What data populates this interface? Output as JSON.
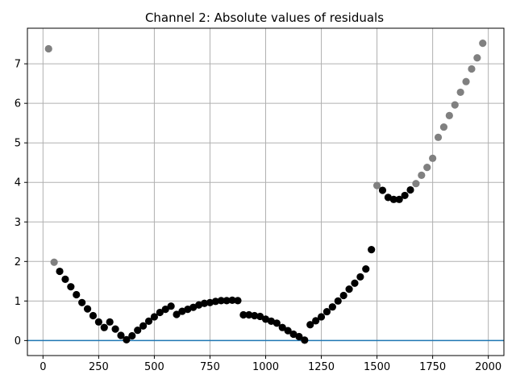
{
  "chart_data": {
    "type": "scatter",
    "title": "Channel 2: Absolute values of residuals",
    "xlabel": "",
    "ylabel": "",
    "xlim": [
      -70,
      2070
    ],
    "ylim": [
      -0.38,
      7.9
    ],
    "x_ticks": [
      0,
      250,
      500,
      750,
      1000,
      1250,
      1500,
      1750,
      2000
    ],
    "x_tick_labels": [
      "0",
      "250",
      "500",
      "750",
      "1000",
      "1250",
      "1500",
      "1750",
      "2000"
    ],
    "y_ticks": [
      0,
      1,
      2,
      3,
      4,
      5,
      6,
      7
    ],
    "y_tick_labels": [
      "0",
      "1",
      "2",
      "3",
      "4",
      "5",
      "6",
      "7"
    ],
    "grid": true,
    "colors": {
      "inlier": "#000000",
      "outlier": "#808080",
      "baseline": "#1f77b4",
      "grid": "#b0b0b0"
    },
    "reference_line": {
      "y": 0
    },
    "series": [
      {
        "category": "outlier",
        "color": "#808080",
        "points": [
          [
            25,
            7.38
          ],
          [
            50,
            1.98
          ],
          [
            1500,
            3.92
          ],
          [
            1675,
            3.97
          ],
          [
            1700,
            4.18
          ],
          [
            1725,
            4.38
          ],
          [
            1750,
            4.61
          ],
          [
            1775,
            5.14
          ],
          [
            1800,
            5.4
          ],
          [
            1825,
            5.69
          ],
          [
            1850,
            5.96
          ],
          [
            1875,
            6.28
          ],
          [
            1900,
            6.55
          ],
          [
            1925,
            6.87
          ],
          [
            1950,
            7.15
          ],
          [
            1975,
            7.52
          ]
        ]
      },
      {
        "category": "inlier",
        "color": "#000000",
        "points": [
          [
            75,
            1.75
          ],
          [
            100,
            1.55
          ],
          [
            125,
            1.36
          ],
          [
            150,
            1.16
          ],
          [
            175,
            0.96
          ],
          [
            200,
            0.8
          ],
          [
            225,
            0.63
          ],
          [
            250,
            0.47
          ],
          [
            275,
            0.33
          ],
          [
            300,
            0.47
          ],
          [
            325,
            0.29
          ],
          [
            350,
            0.13
          ],
          [
            375,
            0.02
          ],
          [
            400,
            0.12
          ],
          [
            425,
            0.26
          ],
          [
            450,
            0.37
          ],
          [
            475,
            0.49
          ],
          [
            500,
            0.6
          ],
          [
            525,
            0.71
          ],
          [
            550,
            0.79
          ],
          [
            575,
            0.87
          ],
          [
            600,
            0.66
          ],
          [
            625,
            0.74
          ],
          [
            650,
            0.79
          ],
          [
            675,
            0.84
          ],
          [
            700,
            0.9
          ],
          [
            725,
            0.94
          ],
          [
            750,
            0.96
          ],
          [
            775,
            0.99
          ],
          [
            800,
            1.01
          ],
          [
            825,
            1.01
          ],
          [
            850,
            1.02
          ],
          [
            875,
            1.01
          ],
          [
            900,
            0.65
          ],
          [
            925,
            0.65
          ],
          [
            950,
            0.63
          ],
          [
            975,
            0.61
          ],
          [
            1000,
            0.54
          ],
          [
            1025,
            0.49
          ],
          [
            1050,
            0.44
          ],
          [
            1075,
            0.33
          ],
          [
            1100,
            0.25
          ],
          [
            1125,
            0.16
          ],
          [
            1150,
            0.1
          ],
          [
            1175,
            0.01
          ],
          [
            1200,
            0.4
          ],
          [
            1225,
            0.5
          ],
          [
            1250,
            0.6
          ],
          [
            1275,
            0.73
          ],
          [
            1300,
            0.85
          ],
          [
            1325,
            1.0
          ],
          [
            1350,
            1.14
          ],
          [
            1375,
            1.3
          ],
          [
            1400,
            1.45
          ],
          [
            1425,
            1.61
          ],
          [
            1450,
            1.81
          ],
          [
            1475,
            2.3
          ],
          [
            1525,
            3.8
          ],
          [
            1550,
            3.62
          ],
          [
            1575,
            3.57
          ],
          [
            1600,
            3.57
          ],
          [
            1625,
            3.67
          ],
          [
            1650,
            3.81
          ]
        ]
      }
    ]
  }
}
